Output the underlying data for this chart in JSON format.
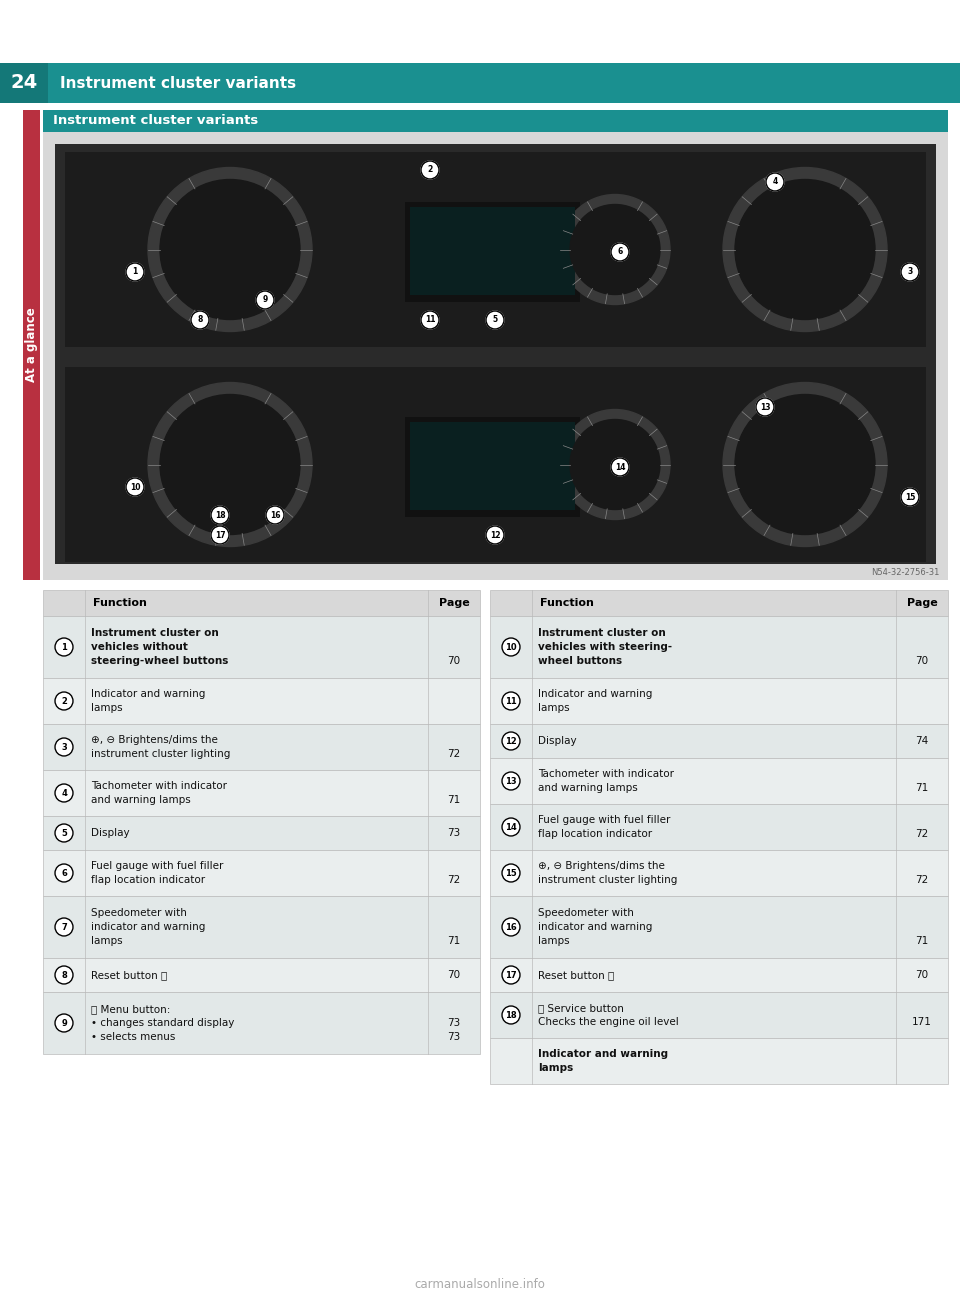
{
  "page_title": "Instrument cluster variants",
  "page_number": "24",
  "section_title": "Instrument cluster variants",
  "sidebar_label": "At a glance",
  "header_bg": "#1a9090",
  "header_dark_box": "#147878",
  "header_text_color": "#ffffff",
  "sidebar_bg": "#b83040",
  "section_header_bg": "#1a9090",
  "table_header_bg": "#d8d8d8",
  "table_row_odd_bg": "#e2e8e8",
  "table_row_even_bg": "#eaeeee",
  "image_outer_bg": "#d8d8d8",
  "image_inner_bg": "#2a2a2a",
  "image_note": "N54-32-2756-31",
  "watermark": "carmanualsonline.info",
  "left_table": {
    "headers": [
      "Function",
      "Page"
    ],
    "rows": [
      {
        "num": "1",
        "bold": true,
        "lines": [
          "Instrument cluster on",
          "vehicles without",
          "steering-wheel buttons"
        ],
        "page_lines": [
          "",
          "",
          "70"
        ]
      },
      {
        "num": "2",
        "bold": false,
        "lines": [
          "Indicator and warning",
          "lamps"
        ],
        "page_lines": [
          "",
          ""
        ]
      },
      {
        "num": "3",
        "bold": false,
        "lines": [
          "⊕, ⊖ Brightens/dims the",
          "instrument cluster lighting"
        ],
        "page_lines": [
          "",
          "72"
        ]
      },
      {
        "num": "4",
        "bold": false,
        "lines": [
          "Tachometer with indicator",
          "and warning lamps"
        ],
        "page_lines": [
          "",
          "71"
        ]
      },
      {
        "num": "5",
        "bold": false,
        "lines": [
          "Display"
        ],
        "page_lines": [
          "73"
        ]
      },
      {
        "num": "6",
        "bold": false,
        "lines": [
          "Fuel gauge with fuel filler",
          "flap location indicator"
        ],
        "page_lines": [
          "",
          "72"
        ]
      },
      {
        "num": "7",
        "bold": false,
        "lines": [
          "Speedometer with",
          "indicator and warning",
          "lamps"
        ],
        "page_lines": [
          "",
          "",
          "71"
        ]
      },
      {
        "num": "8",
        "bold": false,
        "lines": [
          "Reset button ⒪"
        ],
        "page_lines": [
          "70"
        ]
      },
      {
        "num": "9",
        "bold": false,
        "lines": [
          "Ⓜ Menu button:",
          "• changes standard display",
          "• selects menus"
        ],
        "page_lines": [
          "",
          "73",
          "73"
        ]
      }
    ]
  },
  "right_table": {
    "headers": [
      "Function",
      "Page"
    ],
    "rows": [
      {
        "num": "10",
        "bold": true,
        "lines": [
          "Instrument cluster on",
          "vehicles with steering-",
          "wheel buttons"
        ],
        "page_lines": [
          "",
          "",
          "70"
        ]
      },
      {
        "num": "11",
        "bold": false,
        "lines": [
          "Indicator and warning",
          "lamps"
        ],
        "page_lines": [
          "",
          ""
        ]
      },
      {
        "num": "12",
        "bold": false,
        "lines": [
          "Display"
        ],
        "page_lines": [
          "74"
        ]
      },
      {
        "num": "13",
        "bold": false,
        "lines": [
          "Tachometer with indicator",
          "and warning lamps"
        ],
        "page_lines": [
          "",
          "71"
        ]
      },
      {
        "num": "14",
        "bold": false,
        "lines": [
          "Fuel gauge with fuel filler",
          "flap location indicator"
        ],
        "page_lines": [
          "",
          "72"
        ]
      },
      {
        "num": "15",
        "bold": false,
        "lines": [
          "⊕, ⊖ Brightens/dims the",
          "instrument cluster lighting"
        ],
        "page_lines": [
          "",
          "72"
        ]
      },
      {
        "num": "16",
        "bold": false,
        "lines": [
          "Speedometer with",
          "indicator and warning",
          "lamps"
        ],
        "page_lines": [
          "",
          "",
          "71"
        ]
      },
      {
        "num": "17",
        "bold": false,
        "lines": [
          "Reset button ⒪"
        ],
        "page_lines": [
          "70"
        ]
      },
      {
        "num": "18",
        "bold": false,
        "lines": [
          "ⓢ Service button",
          "Checks the engine oil level"
        ],
        "page_lines": [
          "",
          "171"
        ]
      },
      {
        "num": "",
        "bold": true,
        "lines": [
          "Indicator and warning",
          "lamps"
        ],
        "page_lines": [
          "",
          ""
        ]
      }
    ]
  }
}
